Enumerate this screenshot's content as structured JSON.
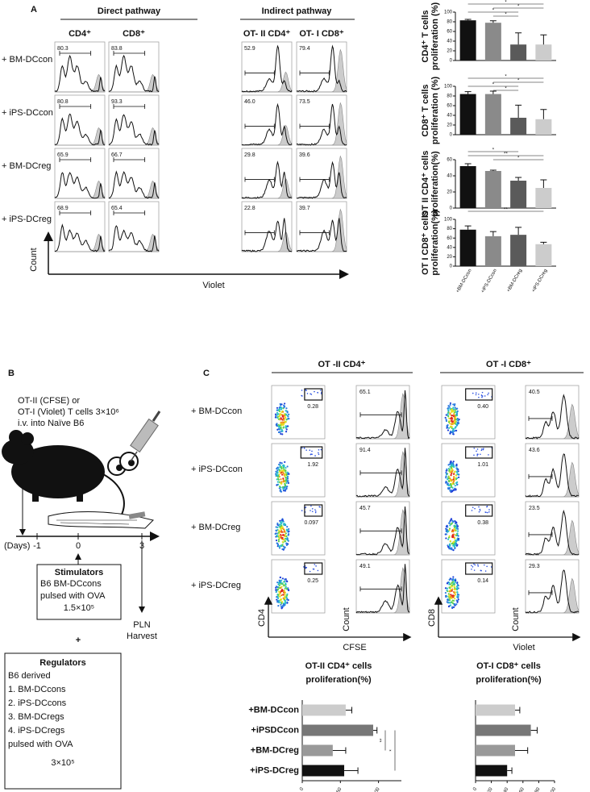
{
  "panel_a": {
    "label": "A",
    "pathway_headers": [
      "Direct pathway",
      "Indirect pathway"
    ],
    "column_headers": [
      "CD4⁺",
      "CD8⁺",
      "OT- II CD4⁺",
      "OT- I CD8⁺"
    ],
    "row_labels": [
      "+ BM-DCcon",
      "+ iPS-DCcon",
      "+ BM-DCreg",
      "+ iPS-DCreg"
    ],
    "gate_values": [
      [
        "80.3",
        "83.8",
        "52.9",
        "79.4"
      ],
      [
        "80.8",
        "93.3",
        "46.0",
        "73.5"
      ],
      [
        "65.9",
        "66.7",
        "29.8",
        "39.6"
      ],
      [
        "68.9",
        "65.4",
        "22.8",
        "39.7"
      ]
    ],
    "y_axis_label": "Count",
    "x_axis_label": "Violet",
    "bar_categories": [
      "+BM-DCcon",
      "+iPS-DCcon",
      "+BM-DCreg",
      "+iPS-DCreg"
    ],
    "bar_colors": [
      "#111111",
      "#8a8a8a",
      "#5a5a5a",
      "#cccccc"
    ],
    "charts": [
      {
        "type": "bar",
        "ylabel": [
          "CD4⁺ T cells",
          "proliferation (%)"
        ],
        "values": [
          83,
          78,
          33,
          33
        ],
        "errors": [
          2,
          4,
          24,
          20
        ],
        "ylim": [
          0,
          100
        ],
        "yticks": [
          0,
          20,
          40,
          60,
          80,
          100
        ],
        "significance": [
          "*",
          "*",
          "*",
          "*"
        ]
      },
      {
        "type": "bar",
        "ylabel": [
          "CD8⁺ T cells",
          "proliferation (%)"
        ],
        "values": [
          84,
          84,
          35,
          32
        ],
        "errors": [
          5,
          6,
          26,
          20
        ],
        "ylim": [
          0,
          100
        ],
        "yticks": [
          0,
          20,
          40,
          60,
          80,
          100
        ],
        "significance": [
          "*",
          "*",
          "*",
          "*"
        ]
      },
      {
        "type": "bar",
        "ylabel": [
          "OT II CD4⁺ cells",
          "proliferation(%)"
        ],
        "values": [
          52,
          46,
          34,
          25
        ],
        "errors": [
          3,
          1,
          4,
          10
        ],
        "ylim": [
          0,
          60
        ],
        "yticks": [
          0,
          20,
          40,
          60
        ],
        "significance": [
          "*",
          "**",
          "*"
        ]
      },
      {
        "type": "bar",
        "ylabel": [
          "OT I CD8⁺ cells",
          "proliferation(%)"
        ],
        "values": [
          78,
          64,
          67,
          47
        ],
        "errors": [
          8,
          10,
          16,
          4
        ],
        "ylim": [
          0,
          100
        ],
        "yticks": [
          0,
          20,
          40,
          60,
          80,
          100
        ],
        "significance": [
          "**"
        ]
      }
    ]
  },
  "panel_b": {
    "label": "B",
    "injection": [
      "OT-II (CFSE) or",
      "OT-I (Violet) T cells 3×10⁶",
      "i.v. into Naïve B6"
    ],
    "days_label": "(Days)",
    "days": [
      "-1",
      "0",
      "3"
    ],
    "stimulators": {
      "title": "Stimulators",
      "lines": [
        "B6 BM-DCcons",
        "pulsed with OVA",
        "1.5×10⁵"
      ]
    },
    "harvest": [
      "PLN",
      "Harvest"
    ],
    "plus": "+",
    "regulators": {
      "title": "Regulators",
      "lines": [
        "B6 derived",
        "1.    BM-DCcons",
        "2.    iPS-DCcons",
        "3.    BM-DCregs",
        "4.    iPS-DCregs",
        "pulsed with OVA",
        "3×10⁵"
      ]
    }
  },
  "panel_c": {
    "label": "C",
    "headers": [
      "OT -II CD4⁺",
      "OT -I CD8⁺"
    ],
    "row_labels": [
      "+ BM-DCcon",
      "+ iPS-DCcon",
      "+ BM-DCreg",
      "+ iPS-DCreg"
    ],
    "cd4_gate_values": [
      "0.28",
      "1.92",
      "0.097",
      "0.25"
    ],
    "cd4_hist_values": [
      "65.1",
      "91.4",
      "45.7",
      "49.1"
    ],
    "cd8_gate_values": [
      "0.40",
      "1.01",
      "0.38",
      "0.14"
    ],
    "cd8_hist_values": [
      "40.5",
      "43.6",
      "23.5",
      "29.3"
    ],
    "axis_labels": {
      "cd4": "CD4",
      "cfse": "CFSE",
      "cd8": "CD8",
      "violet": "Violet",
      "count": "Count"
    },
    "charts": [
      {
        "type": "hbar",
        "title": [
          "OT-II CD4⁺ cells",
          "proliferation(%)"
        ],
        "categories": [
          "+BM-DCcon",
          "+iPSDCcon",
          "+BM-DCreg",
          "+iPS-DCreg"
        ],
        "colors": [
          "#cccccc",
          "#777777",
          "#999999",
          "#111111"
        ],
        "values": [
          57,
          93,
          40,
          55
        ],
        "errors": [
          8,
          5,
          17,
          18
        ],
        "xlim": [
          0,
          130
        ],
        "xticks": [
          0,
          50,
          100
        ],
        "significance": [
          "**",
          "*"
        ]
      },
      {
        "type": "hbar",
        "title": [
          "OT-I CD8⁺ cells",
          "proliferation(%)"
        ],
        "colors": [
          "#cccccc",
          "#777777",
          "#999999",
          "#111111"
        ],
        "values": [
          50,
          70,
          50,
          40
        ],
        "errors": [
          6,
          8,
          16,
          6
        ],
        "xlim": [
          0,
          100
        ],
        "xticks": [
          0,
          20,
          40,
          60,
          80,
          100
        ]
      }
    ]
  }
}
